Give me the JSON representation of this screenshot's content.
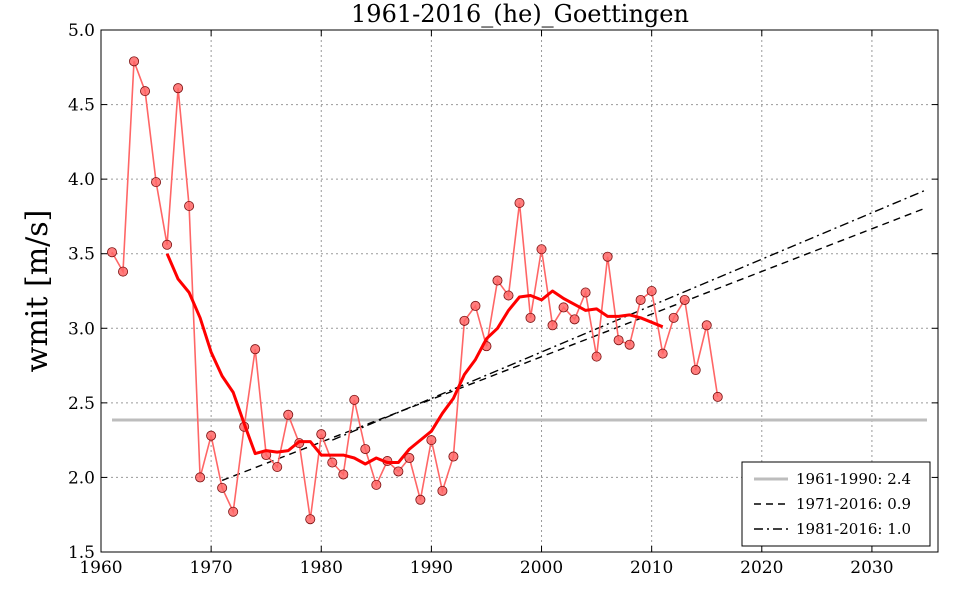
{
  "chart_data": {
    "type": "line",
    "title": "1961-2016_(he)_Goettingen",
    "xlabel": "",
    "ylabel": "wmit [m/s]",
    "xlim": [
      1960,
      2036
    ],
    "ylim": [
      1.5,
      5.0
    ],
    "xticks": [
      1960,
      1970,
      1980,
      1990,
      2000,
      2010,
      2020,
      2030
    ],
    "yticks": [
      "1.5",
      "2.0",
      "2.5",
      "3.0",
      "3.5",
      "4.0",
      "4.5",
      "5.0"
    ],
    "grid": true,
    "legend_position": "bottom-right",
    "series": [
      {
        "kind": "observations",
        "color": "#ff6666",
        "x": [
          1961,
          1962,
          1963,
          1964,
          1965,
          1966,
          1967,
          1968,
          1969,
          1970,
          1971,
          1972,
          1973,
          1974,
          1975,
          1976,
          1977,
          1978,
          1979,
          1980,
          1981,
          1982,
          1983,
          1984,
          1985,
          1986,
          1987,
          1988,
          1989,
          1990,
          1991,
          1992,
          1993,
          1994,
          1995,
          1996,
          1997,
          1998,
          1999,
          2000,
          2001,
          2002,
          2003,
          2004,
          2005,
          2006,
          2007,
          2008,
          2009,
          2010,
          2011,
          2012,
          2013,
          2014,
          2015,
          2016
        ],
        "y": [
          3.51,
          3.38,
          4.79,
          4.59,
          3.98,
          3.56,
          4.61,
          3.82,
          2.0,
          2.28,
          1.93,
          1.77,
          2.34,
          2.86,
          2.15,
          2.07,
          2.42,
          2.23,
          1.72,
          2.29,
          2.1,
          2.02,
          2.52,
          2.19,
          1.95,
          2.11,
          2.04,
          2.13,
          1.85,
          2.25,
          1.91,
          2.14,
          3.05,
          3.15,
          2.88,
          3.32,
          3.22,
          3.84,
          3.07,
          3.53,
          3.02,
          3.14,
          3.06,
          3.24,
          2.81,
          3.48,
          2.92,
          2.89,
          3.19,
          3.25,
          2.83,
          3.07,
          3.19,
          2.72,
          3.02,
          2.54
        ]
      },
      {
        "kind": "running-mean",
        "color": "#ff0000",
        "x": [
          1966,
          1967,
          1968,
          1969,
          1970,
          1971,
          1972,
          1973,
          1974,
          1975,
          1976,
          1977,
          1978,
          1979,
          1980,
          1981,
          1982,
          1983,
          1984,
          1985,
          1986,
          1987,
          1988,
          1989,
          1990,
          1991,
          1992,
          1993,
          1994,
          1995,
          1996,
          1997,
          1998,
          1999,
          2000,
          2001,
          2002,
          2003,
          2004,
          2005,
          2006,
          2007,
          2008,
          2009,
          2010,
          2011
        ],
        "y": [
          3.5,
          3.33,
          3.24,
          3.07,
          2.84,
          2.68,
          2.57,
          2.36,
          2.16,
          2.18,
          2.17,
          2.18,
          2.24,
          2.24,
          2.15,
          2.15,
          2.15,
          2.13,
          2.09,
          2.13,
          2.1,
          2.1,
          2.19,
          2.25,
          2.31,
          2.43,
          2.53,
          2.69,
          2.79,
          2.93,
          3.0,
          3.12,
          3.21,
          3.22,
          3.19,
          3.25,
          3.2,
          3.16,
          3.12,
          3.13,
          3.08,
          3.08,
          3.09,
          3.07,
          3.04,
          3.01
        ]
      }
    ],
    "reference_lines": [
      {
        "label": "1961-1990: 2.4",
        "style": "solid",
        "color": "#bdbdbd",
        "y_const": 2.385,
        "x_range": [
          1961,
          2035
        ]
      },
      {
        "label": "1971-2016: 0.9",
        "style": "dashed",
        "color": "#000000",
        "x_range": [
          1971,
          2035
        ],
        "y_range": [
          1.98,
          3.81
        ]
      },
      {
        "label": "1981-2016: 1.0",
        "style": "dashdot",
        "color": "#000000",
        "x_range": [
          1981,
          2035
        ],
        "y_range": [
          2.25,
          3.93
        ]
      }
    ]
  }
}
